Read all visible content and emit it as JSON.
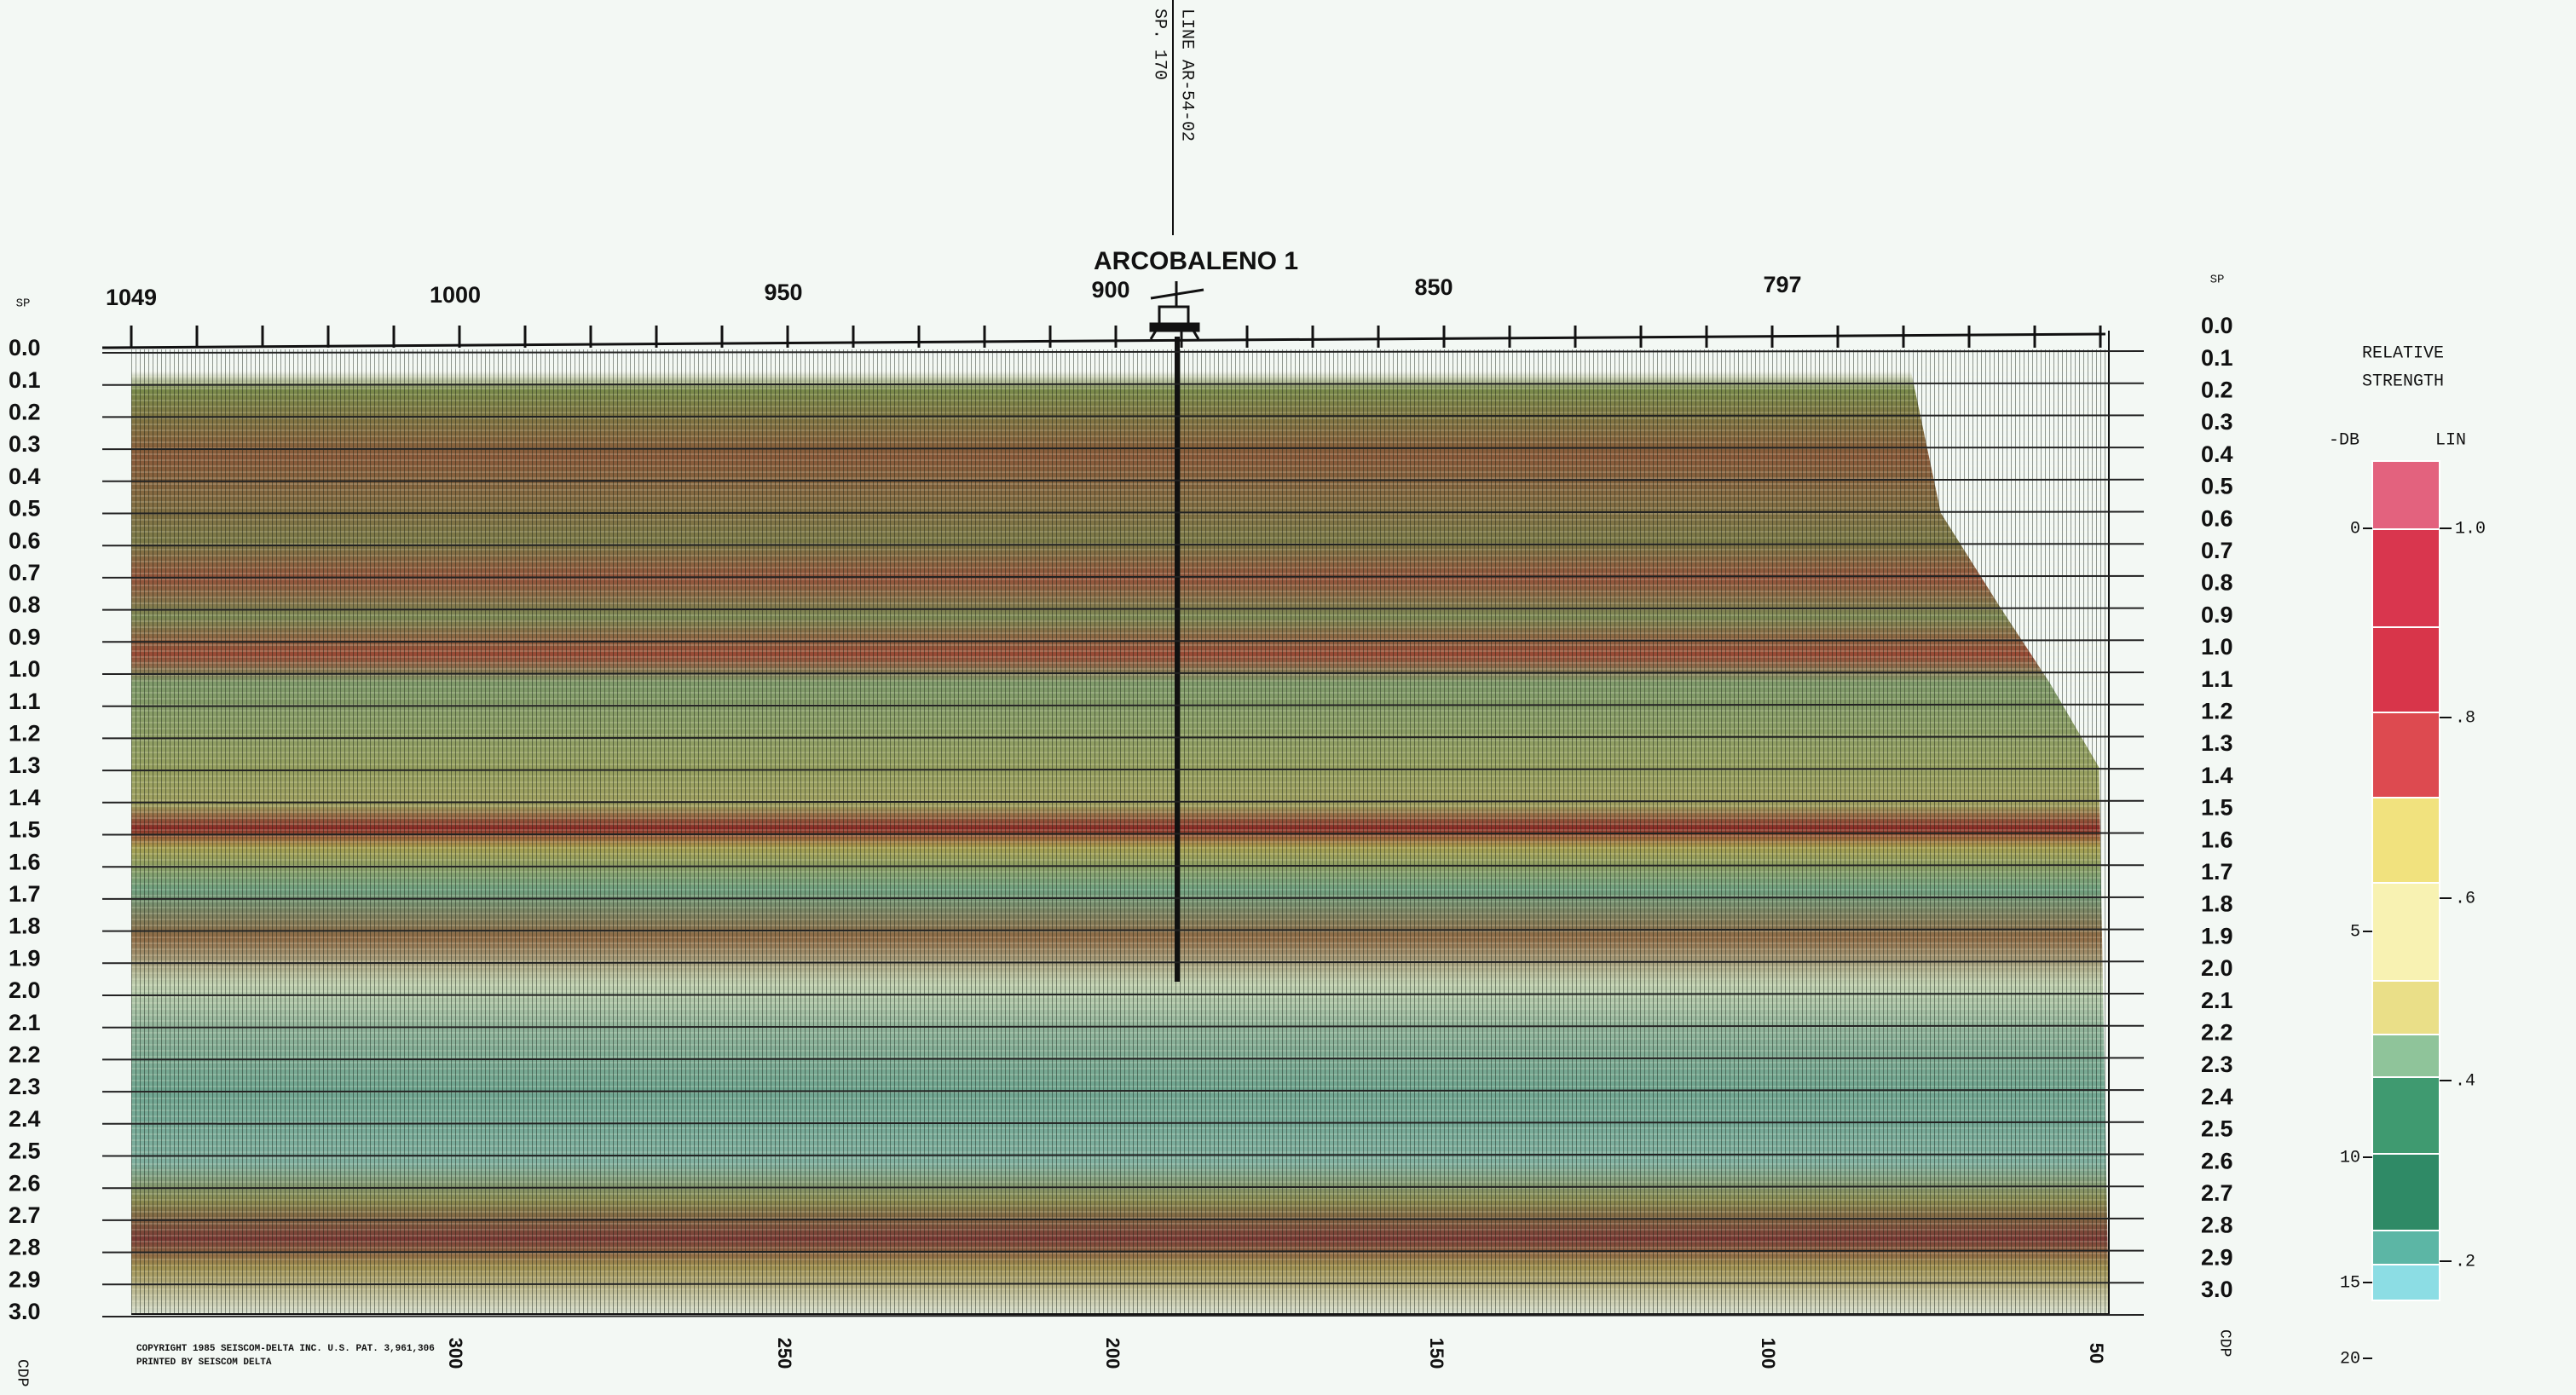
{
  "header": {
    "line_label": "LINE AR-54-02",
    "sp_label": "SP. 170",
    "well_name": "ARCOBALENO 1"
  },
  "sp_axis": {
    "title_left": "SP",
    "title_right": "SP",
    "labels": [
      "1049",
      "1000",
      "950",
      "900",
      "850",
      "797"
    ]
  },
  "time_axis": {
    "labels": [
      "0.0",
      "0.1",
      "0.2",
      "0.3",
      "0.4",
      "0.5",
      "0.6",
      "0.7",
      "0.8",
      "0.9",
      "1.0",
      "1.1",
      "1.2",
      "1.3",
      "1.4",
      "1.5",
      "1.6",
      "1.7",
      "1.8",
      "1.9",
      "2.0",
      "2.1",
      "2.2",
      "2.3",
      "2.4",
      "2.5",
      "2.6",
      "2.7",
      "2.8",
      "2.9",
      "3.0"
    ]
  },
  "cdp_axis": {
    "title_left": "CDP",
    "title_right": "CDP",
    "labels": [
      "300",
      "250",
      "200",
      "150",
      "100",
      "50"
    ]
  },
  "copyright": [
    "COPYRIGHT 1985 SEISCOM-DELTA INC. U.S. PAT. 3,961,306",
    "PRINTED BY SEISCOM DELTA"
  ],
  "legend": {
    "title": [
      "RELATIVE",
      "STRENGTH"
    ],
    "db_header": "-DB",
    "lin_header": "LIN",
    "db_labels": [
      "0",
      "5",
      "10",
      "15",
      "20"
    ],
    "lin_labels": [
      "1.0",
      ".8",
      ".6",
      ".4",
      ".2"
    ]
  }
}
